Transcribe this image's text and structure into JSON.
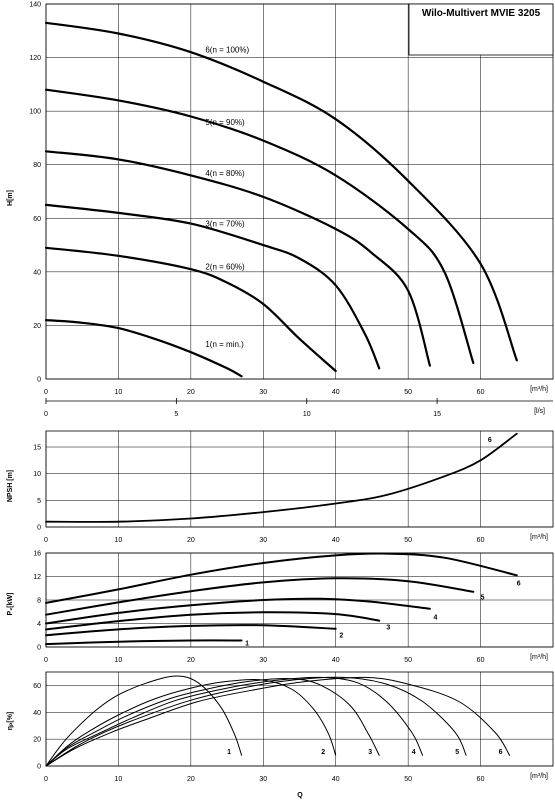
{
  "title": "Wilo-Multivert MVIE 3205",
  "unit_m3h": "[m³/h]",
  "unit_ls": "[l/s]",
  "q_label": "Q",
  "chart_data": [
    {
      "id": "head",
      "type": "line",
      "ylabel": "H[m]",
      "xlim": [
        0,
        70
      ],
      "ylim": [
        0,
        140
      ],
      "x_ticks": [
        0,
        10,
        20,
        30,
        40,
        50,
        60
      ],
      "y_ticks": [
        0,
        20,
        40,
        60,
        80,
        100,
        120,
        140
      ],
      "series": [
        {
          "name": "6(n = 100%)",
          "label_at": [
            22,
            123
          ],
          "points": [
            [
              0,
              133
            ],
            [
              10,
              129
            ],
            [
              20,
              122
            ],
            [
              30,
              111
            ],
            [
              40,
              97
            ],
            [
              50,
              74
            ],
            [
              60,
              43
            ],
            [
              65,
              7
            ]
          ]
        },
        {
          "name": "5(n = 90%)",
          "label_at": [
            22,
            96
          ],
          "points": [
            [
              0,
              108
            ],
            [
              10,
              104
            ],
            [
              20,
              98
            ],
            [
              30,
              89
            ],
            [
              40,
              76
            ],
            [
              50,
              56
            ],
            [
              55,
              40
            ],
            [
              59,
              6
            ]
          ]
        },
        {
          "name": "4(n = 80%)",
          "label_at": [
            22,
            77
          ],
          "points": [
            [
              0,
              85
            ],
            [
              10,
              82
            ],
            [
              20,
              76
            ],
            [
              30,
              68
            ],
            [
              40,
              56
            ],
            [
              45,
              47
            ],
            [
              50,
              33
            ],
            [
              53,
              5
            ]
          ]
        },
        {
          "name": "3(n = 70%)",
          "label_at": [
            22,
            58
          ],
          "points": [
            [
              0,
              65
            ],
            [
              10,
              62
            ],
            [
              20,
              58
            ],
            [
              30,
              50
            ],
            [
              35,
              45
            ],
            [
              40,
              35
            ],
            [
              44,
              17
            ],
            [
              46,
              4
            ]
          ]
        },
        {
          "name": "2(n = 60%)",
          "label_at": [
            22,
            42
          ],
          "points": [
            [
              0,
              49
            ],
            [
              10,
              46
            ],
            [
              20,
              41
            ],
            [
              25,
              36
            ],
            [
              30,
              28
            ],
            [
              35,
              15
            ],
            [
              40,
              3
            ]
          ]
        },
        {
          "name": "1(n = min.)",
          "label_at": [
            22,
            13
          ],
          "points": [
            [
              0,
              22
            ],
            [
              5,
              21
            ],
            [
              10,
              19
            ],
            [
              15,
              15
            ],
            [
              20,
              10
            ],
            [
              25,
              4
            ],
            [
              27,
              1
            ]
          ]
        }
      ]
    },
    {
      "id": "flow_ls",
      "type": "axis",
      "x_ticks": [
        0,
        5,
        10,
        15
      ],
      "xlim_m3h": [
        0,
        70
      ],
      "ls_to_m3h": 3.6
    },
    {
      "id": "npsh",
      "type": "line",
      "ylabel": "NPSH [m]",
      "xlim": [
        0,
        70
      ],
      "ylim": [
        0,
        18
      ],
      "x_ticks": [
        0,
        10,
        20,
        30,
        40,
        50,
        60
      ],
      "y_ticks": [
        0,
        5,
        10,
        15
      ],
      "series": [
        {
          "name": "6",
          "label_at": [
            61,
            16.5
          ],
          "points": [
            [
              0,
              1
            ],
            [
              10,
              1
            ],
            [
              20,
              1.6
            ],
            [
              30,
              2.8
            ],
            [
              40,
              4.4
            ],
            [
              47,
              6
            ],
            [
              55,
              9.5
            ],
            [
              60,
              12.5
            ],
            [
              65,
              17.5
            ]
          ]
        }
      ]
    },
    {
      "id": "power",
      "type": "line",
      "ylabel": "P₂[kW]",
      "xlim": [
        0,
        70
      ],
      "ylim": [
        0,
        16
      ],
      "x_ticks": [
        0,
        10,
        20,
        30,
        40,
        50,
        60
      ],
      "y_ticks": [
        0,
        4,
        8,
        12,
        16
      ],
      "series": [
        {
          "name": "1",
          "label_at": [
            27.5,
            0.8
          ],
          "points": [
            [
              0,
              0.5
            ],
            [
              10,
              0.9
            ],
            [
              20,
              1.1
            ],
            [
              27,
              1.1
            ]
          ]
        },
        {
          "name": "2",
          "label_at": [
            40.5,
            2.1
          ],
          "points": [
            [
              0,
              2
            ],
            [
              10,
              3
            ],
            [
              20,
              3.6
            ],
            [
              30,
              3.7
            ],
            [
              40,
              3.1
            ]
          ]
        },
        {
          "name": "3",
          "label_at": [
            47,
            3.5
          ],
          "points": [
            [
              0,
              3
            ],
            [
              10,
              4.4
            ],
            [
              20,
              5.5
            ],
            [
              30,
              5.9
            ],
            [
              40,
              5.6
            ],
            [
              46,
              4.5
            ]
          ]
        },
        {
          "name": "4",
          "label_at": [
            53.5,
            5.2
          ],
          "points": [
            [
              0,
              4
            ],
            [
              10,
              5.8
            ],
            [
              20,
              7.1
            ],
            [
              30,
              8
            ],
            [
              38,
              8.2
            ],
            [
              45,
              7.7
            ],
            [
              53,
              6.5
            ]
          ]
        },
        {
          "name": "5",
          "label_at": [
            60,
            8.6
          ],
          "points": [
            [
              0,
              5.5
            ],
            [
              10,
              7.6
            ],
            [
              20,
              9.5
            ],
            [
              30,
              11
            ],
            [
              40,
              11.7
            ],
            [
              50,
              11.2
            ],
            [
              59,
              9.4
            ]
          ]
        },
        {
          "name": "6",
          "label_at": [
            65,
            11
          ],
          "points": [
            [
              0,
              7.5
            ],
            [
              10,
              9.8
            ],
            [
              20,
              12.3
            ],
            [
              30,
              14.3
            ],
            [
              40,
              15.6
            ],
            [
              47,
              15.9
            ],
            [
              55,
              15.2
            ],
            [
              65,
              12.2
            ]
          ]
        }
      ]
    },
    {
      "id": "efficiency",
      "type": "line",
      "ylabel": "ηₚ[%]",
      "xlim": [
        0,
        70
      ],
      "ylim": [
        0,
        70
      ],
      "x_ticks": [
        0,
        10,
        20,
        30,
        40,
        50,
        60
      ],
      "y_ticks": [
        0,
        20,
        40,
        60
      ],
      "series": [
        {
          "name": "1",
          "label_at": [
            25,
            11
          ],
          "points": [
            [
              0,
              0
            ],
            [
              2,
              15
            ],
            [
              4,
              27
            ],
            [
              7,
              42
            ],
            [
              10,
              53
            ],
            [
              14,
              62
            ],
            [
              18,
              67
            ],
            [
              21,
              62
            ],
            [
              24,
              45
            ],
            [
              26,
              24
            ],
            [
              27,
              8
            ]
          ]
        },
        {
          "name": "2",
          "label_at": [
            38,
            11
          ],
          "points": [
            [
              0,
              0
            ],
            [
              3,
              15
            ],
            [
              6,
              26
            ],
            [
              10,
              38
            ],
            [
              15,
              50
            ],
            [
              20,
              58
            ],
            [
              25,
              63
            ],
            [
              30,
              64
            ],
            [
              34,
              57
            ],
            [
              37,
              42
            ],
            [
              39,
              24
            ],
            [
              40,
              8
            ]
          ]
        },
        {
          "name": "3",
          "label_at": [
            44.5,
            11
          ],
          "points": [
            [
              0,
              0
            ],
            [
              3,
              14
            ],
            [
              7,
              26
            ],
            [
              11,
              37
            ],
            [
              17,
              50
            ],
            [
              22,
              57
            ],
            [
              28,
              63
            ],
            [
              34,
              65
            ],
            [
              38,
              60
            ],
            [
              42,
              45
            ],
            [
              44.5,
              24
            ],
            [
              46,
              8
            ]
          ]
        },
        {
          "name": "4",
          "label_at": [
            50.5,
            11
          ],
          "points": [
            [
              0,
              0
            ],
            [
              3,
              13
            ],
            [
              8,
              26
            ],
            [
              12,
              36
            ],
            [
              18,
              49
            ],
            [
              25,
              58
            ],
            [
              32,
              64
            ],
            [
              38,
              66
            ],
            [
              43,
              62
            ],
            [
              47,
              48
            ],
            [
              50.5,
              25
            ],
            [
              52,
              8
            ]
          ]
        },
        {
          "name": "5",
          "label_at": [
            56.5,
            11
          ],
          "points": [
            [
              0,
              0
            ],
            [
              4,
              14
            ],
            [
              8,
              25
            ],
            [
              13,
              36
            ],
            [
              20,
              49
            ],
            [
              27,
              58
            ],
            [
              34,
              64
            ],
            [
              41,
              66
            ],
            [
              47,
              61
            ],
            [
              52,
              48
            ],
            [
              56.5,
              25
            ],
            [
              58,
              8
            ]
          ]
        },
        {
          "name": "6",
          "label_at": [
            62.5,
            11
          ],
          "points": [
            [
              0,
              0
            ],
            [
              4,
              13
            ],
            [
              9,
              25
            ],
            [
              14,
              35
            ],
            [
              21,
              48
            ],
            [
              29,
              57
            ],
            [
              36,
              63
            ],
            [
              44,
              66
            ],
            [
              50,
              61
            ],
            [
              57,
              48
            ],
            [
              62,
              25
            ],
            [
              64,
              8
            ]
          ]
        }
      ]
    }
  ]
}
